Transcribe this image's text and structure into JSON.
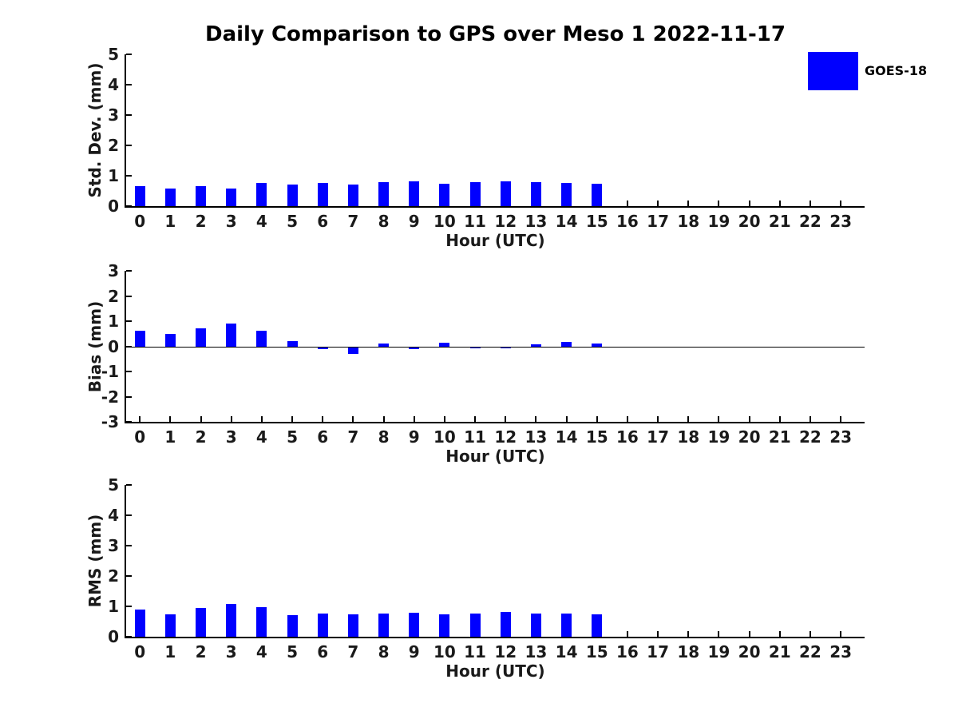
{
  "figure_title": "Daily Comparison to GPS over Meso 1 2022-11-17",
  "legend": {
    "label": "GOES-18",
    "swatch_color": "#0000FF",
    "position": "top-right"
  },
  "colors": {
    "bar": "#0000FF",
    "axis": "#000000",
    "text": "#1a1a1a",
    "background": "#ffffff"
  },
  "chart_data": [
    {
      "type": "bar",
      "title": "",
      "ylabel": "Std. Dev. (mm)",
      "xlabel": "Hour (UTC)",
      "ylim": [
        0,
        5
      ],
      "yticks": [
        0,
        1,
        2,
        3,
        4,
        5
      ],
      "grid": false,
      "legend_position": "none",
      "categories": [
        "0",
        "1",
        "2",
        "3",
        "4",
        "5",
        "6",
        "7",
        "8",
        "9",
        "10",
        "11",
        "12",
        "13",
        "14",
        "15",
        "16",
        "17",
        "18",
        "19",
        "20",
        "21",
        "22",
        "23"
      ],
      "series": [
        {
          "name": "GOES-18",
          "values": [
            0.66,
            0.58,
            0.66,
            0.58,
            0.77,
            0.7,
            0.75,
            0.7,
            0.78,
            0.82,
            0.73,
            0.78,
            0.82,
            0.79,
            0.77,
            0.73,
            null,
            null,
            null,
            null,
            null,
            null,
            null,
            null
          ]
        }
      ]
    },
    {
      "type": "bar",
      "title": "",
      "ylabel": "Bias (mm)",
      "xlabel": "Hour (UTC)",
      "ylim": [
        -3,
        3
      ],
      "yticks": [
        -3,
        -2,
        -1,
        0,
        1,
        2,
        3
      ],
      "grid": false,
      "legend_position": "none",
      "categories": [
        "0",
        "1",
        "2",
        "3",
        "4",
        "5",
        "6",
        "7",
        "8",
        "9",
        "10",
        "11",
        "12",
        "13",
        "14",
        "15",
        "16",
        "17",
        "18",
        "19",
        "20",
        "21",
        "22",
        "23"
      ],
      "series": [
        {
          "name": "GOES-18",
          "values": [
            0.65,
            0.52,
            0.74,
            0.93,
            0.65,
            0.21,
            -0.05,
            -0.24,
            0.13,
            -0.05,
            0.16,
            -0.03,
            -0.03,
            0.09,
            0.2,
            0.12,
            null,
            null,
            null,
            null,
            null,
            null,
            null,
            null
          ]
        }
      ]
    },
    {
      "type": "bar",
      "title": "",
      "ylabel": "RMS (mm)",
      "xlabel": "Hour (UTC)",
      "ylim": [
        0,
        5
      ],
      "yticks": [
        0,
        1,
        2,
        3,
        4,
        5
      ],
      "grid": false,
      "legend_position": "none",
      "categories": [
        "0",
        "1",
        "2",
        "3",
        "4",
        "5",
        "6",
        "7",
        "8",
        "9",
        "10",
        "11",
        "12",
        "13",
        "14",
        "15",
        "16",
        "17",
        "18",
        "19",
        "20",
        "21",
        "22",
        "23"
      ],
      "series": [
        {
          "name": "GOES-18",
          "values": [
            0.9,
            0.74,
            0.95,
            1.09,
            0.98,
            0.71,
            0.76,
            0.74,
            0.76,
            0.78,
            0.74,
            0.76,
            0.82,
            0.76,
            0.76,
            0.73,
            null,
            null,
            null,
            null,
            null,
            null,
            null,
            null
          ]
        }
      ]
    }
  ]
}
